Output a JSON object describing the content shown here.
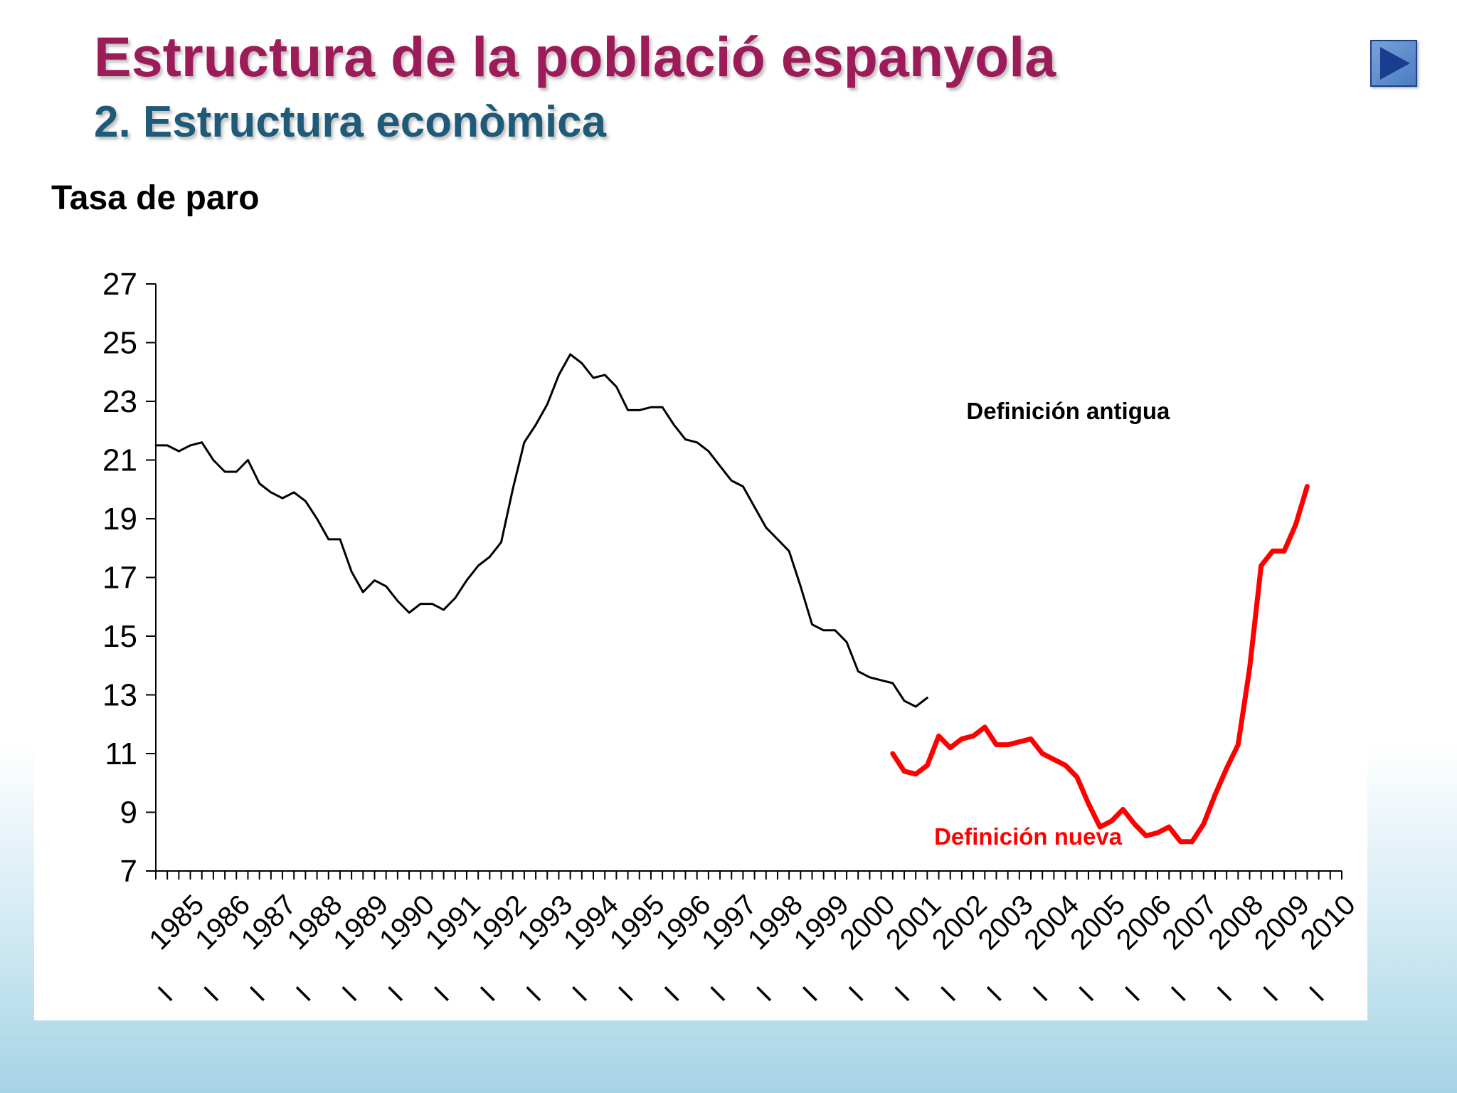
{
  "slide": {
    "title": "Estructura de la població espanyola",
    "subtitle": "2. Estructura econòmica"
  },
  "nav": {
    "icon": "play-forward-icon"
  },
  "colors": {
    "title": "#9c1c5a",
    "subtitle": "#1f5a78",
    "series_old": "#000000",
    "series_new": "#ff0000"
  },
  "chart_data": {
    "type": "line",
    "title": "Tasa de paro",
    "xlabel": "",
    "ylabel": "",
    "ylim": [
      7,
      27
    ],
    "yticks": [
      7,
      9,
      11,
      13,
      15,
      17,
      19,
      21,
      23,
      25,
      27
    ],
    "x_tick_marker": "I",
    "x_categories": [
      "1985",
      "1986",
      "1987",
      "1988",
      "1989",
      "1990",
      "1991",
      "1992",
      "1993",
      "1994",
      "1995",
      "1996",
      "1997",
      "1998",
      "1999",
      "2000",
      "2001",
      "2002",
      "2003",
      "2004",
      "2005",
      "2006",
      "2007",
      "2008",
      "2009",
      "2010"
    ],
    "quarters_per_year": 4,
    "grid": false,
    "annotations": [
      {
        "text": "Definición antigua",
        "series": "old",
        "year": 2002.6,
        "value": 22.4
      },
      {
        "text": "Definición nueva",
        "series": "new",
        "year": 2001.9,
        "value": 7.9
      }
    ],
    "series": [
      {
        "id": "old",
        "start": "1985-I",
        "values": [
          21.5,
          21.5,
          21.3,
          21.5,
          21.6,
          21.0,
          20.6,
          20.6,
          21.0,
          20.2,
          19.9,
          19.7,
          19.9,
          19.6,
          19.0,
          18.3,
          18.3,
          17.2,
          16.5,
          16.9,
          16.7,
          16.2,
          15.8,
          16.1,
          16.1,
          15.9,
          16.3,
          16.9,
          17.4,
          17.7,
          18.2,
          20.0,
          21.6,
          22.2,
          22.9,
          23.9,
          24.6,
          24.3,
          23.8,
          23.9,
          23.5,
          22.7,
          22.7,
          22.8,
          22.8,
          22.2,
          21.7,
          21.6,
          21.3,
          20.8,
          20.3,
          20.1,
          19.4,
          18.7,
          18.3,
          17.9,
          16.7,
          15.4,
          15.2,
          15.2,
          14.8,
          13.8,
          13.6,
          13.5,
          13.4,
          12.8,
          12.6,
          12.9
        ]
      },
      {
        "id": "new",
        "start": "2001-I",
        "values": [
          11.0,
          10.4,
          10.3,
          10.6,
          11.6,
          11.2,
          11.5,
          11.6,
          11.9,
          11.3,
          11.3,
          11.4,
          11.5,
          11.0,
          10.8,
          10.6,
          10.2,
          9.3,
          8.5,
          8.7,
          9.1,
          8.6,
          8.2,
          8.3,
          8.5,
          8.0,
          8.0,
          8.6,
          9.6,
          10.5,
          11.3,
          13.9,
          17.4,
          17.9,
          17.9,
          18.8,
          20.1
        ]
      }
    ]
  }
}
